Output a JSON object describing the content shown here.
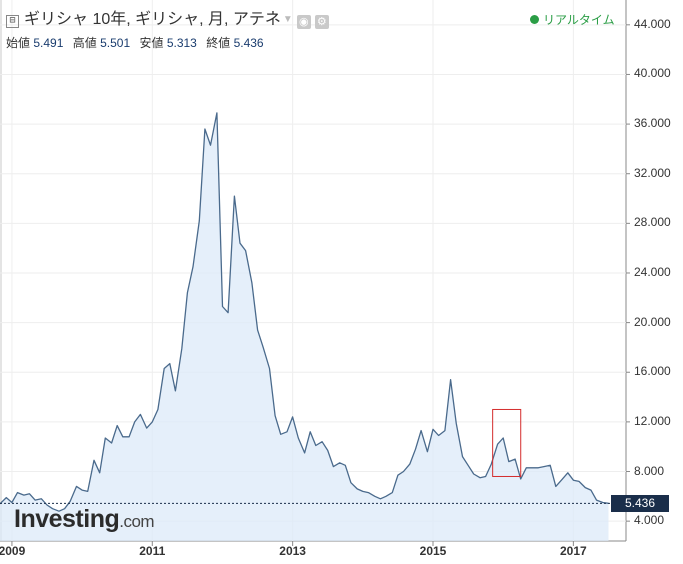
{
  "header": {
    "collapse_glyph": "⊟",
    "title": "ギリシャ 10年, ギリシャ, 月, アテネ",
    "dropdown_icon": "triangle-down-icon",
    "settings_icon": "gear-icon",
    "camera_icon": "camera-icon"
  },
  "ohlc": [
    {
      "label": "始値",
      "value": "5.491"
    },
    {
      "label": "高値",
      "value": "5.501"
    },
    {
      "label": "安値",
      "value": "5.313"
    },
    {
      "label": "終値",
      "value": "5.436"
    }
  ],
  "realtime_label": "リアルタイム",
  "logo": {
    "main": "Investing",
    "suffix": ".com"
  },
  "colors": {
    "line": "#4a6a8c",
    "fill": "#dceaf8",
    "accent": "#1a2e4a",
    "highlight": "#d42c2c",
    "realtime": "#2a9d45"
  },
  "chart_data": {
    "type": "area",
    "title": "ギリシャ 10年, ギリシャ, 月, アテネ",
    "xlabel": "",
    "ylabel": "",
    "ylim": [
      2.4,
      46.0
    ],
    "xlim": [
      2008.83,
      2017.75
    ],
    "grid": true,
    "y_ticks": [
      "4.000",
      "8.000",
      "12.000",
      "16.000",
      "20.000",
      "24.000",
      "28.000",
      "32.000",
      "36.000",
      "40.000",
      "44.000"
    ],
    "x_ticks": [
      "2009",
      "2011",
      "2013",
      "2015",
      "2017"
    ],
    "last_value": "5.436",
    "highlight_box": {
      "x_from": 2015.85,
      "x_to": 2016.25,
      "y_from": 7.6,
      "y_to": 13.0
    },
    "series": [
      {
        "x": [
          2008.83,
          2008.92,
          2009.0,
          2009.08,
          2009.17,
          2009.25,
          2009.33,
          2009.42,
          2009.5,
          2009.58,
          2009.67,
          2009.75,
          2009.83,
          2009.92,
          2010.0,
          2010.08,
          2010.17,
          2010.25,
          2010.33,
          2010.42,
          2010.5,
          2010.58,
          2010.67,
          2010.75,
          2010.83,
          2010.92,
          2011.0,
          2011.08,
          2011.17,
          2011.25,
          2011.33,
          2011.42,
          2011.5,
          2011.58,
          2011.67,
          2011.75,
          2011.83,
          2011.92,
          2012.0,
          2012.08,
          2012.17,
          2012.25,
          2012.33,
          2012.42,
          2012.5,
          2012.58,
          2012.67,
          2012.75,
          2012.83,
          2012.92,
          2013.0,
          2013.08,
          2013.17,
          2013.25,
          2013.33,
          2013.42,
          2013.5,
          2013.58,
          2013.67,
          2013.75,
          2013.83,
          2013.92,
          2014.0,
          2014.08,
          2014.17,
          2014.25,
          2014.33,
          2014.42,
          2014.5,
          2014.58,
          2014.67,
          2014.75,
          2014.83,
          2014.92,
          2015.0,
          2015.08,
          2015.17,
          2015.25,
          2015.33,
          2015.42,
          2015.5,
          2015.58,
          2015.67,
          2015.75,
          2015.83,
          2015.92,
          2016.0,
          2016.08,
          2016.17,
          2016.25,
          2016.33,
          2016.42,
          2016.5,
          2016.58,
          2016.67,
          2016.75,
          2016.83,
          2016.92,
          2017.0,
          2017.08,
          2017.17,
          2017.25,
          2017.33,
          2017.42,
          2017.5
        ],
        "y": [
          5.4,
          5.9,
          5.5,
          6.3,
          6.1,
          6.2,
          5.7,
          5.8,
          5.3,
          5.0,
          4.8,
          5.0,
          5.6,
          6.8,
          6.5,
          6.4,
          8.9,
          7.9,
          10.7,
          10.3,
          11.7,
          10.8,
          10.8,
          12.0,
          12.6,
          11.5,
          12.0,
          13.0,
          16.3,
          16.7,
          14.5,
          17.9,
          22.4,
          24.5,
          28.2,
          35.6,
          34.3,
          36.9,
          21.3,
          20.8,
          30.2,
          26.4,
          25.8,
          23.2,
          19.4,
          18.0,
          16.3,
          12.5,
          11.0,
          11.2,
          12.4,
          10.7,
          9.5,
          11.2,
          10.1,
          10.4,
          9.7,
          8.4,
          8.7,
          8.5,
          7.1,
          6.6,
          6.4,
          6.3,
          6.0,
          5.8,
          6.0,
          6.3,
          7.7,
          8.0,
          8.6,
          9.8,
          11.3,
          9.6,
          11.4,
          10.9,
          11.3,
          15.4,
          11.9,
          9.2,
          8.5,
          7.8,
          7.5,
          7.6,
          8.6,
          10.2,
          10.7,
          8.8,
          9.0,
          7.4,
          8.3,
          8.3,
          8.3,
          8.4,
          8.5,
          6.8,
          7.3,
          7.9,
          7.3,
          7.2,
          6.7,
          6.5,
          5.7,
          5.5,
          5.44
        ]
      }
    ]
  }
}
